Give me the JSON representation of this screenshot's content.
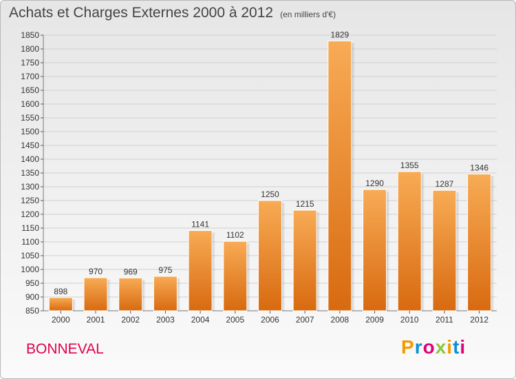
{
  "title": "Achats et Charges Externes 2000 à 2012",
  "subtitle": "(en milliers d'€)",
  "commune": "BONNEVAL",
  "logo": {
    "text": "Proxiti",
    "letters": [
      "P",
      "r",
      "o",
      "x",
      "i",
      "t",
      "i"
    ],
    "colors": [
      "#f39a00",
      "#0a8fd8",
      "#e0007a",
      "#8cc63f",
      "#f39a00",
      "#0a8fd8",
      "#e0007a"
    ]
  },
  "colors": {
    "bar_top": "#f8ab55",
    "bar_bottom": "#d86a10",
    "title": "#444444",
    "commune": "#e0004d"
  },
  "chart_data": {
    "type": "bar",
    "categories": [
      "2000",
      "2001",
      "2002",
      "2003",
      "2004",
      "2005",
      "2006",
      "2007",
      "2008",
      "2009",
      "2010",
      "2011",
      "2012"
    ],
    "values": [
      898,
      970,
      969,
      975,
      1141,
      1102,
      1250,
      1215,
      1829,
      1290,
      1355,
      1287,
      1346
    ],
    "title": "Achats et Charges Externes 2000 à 2012",
    "subtitle": "(en milliers d'€)",
    "ylim": [
      850,
      1850
    ],
    "yticks": [
      850,
      900,
      950,
      1000,
      1050,
      1100,
      1150,
      1200,
      1250,
      1300,
      1350,
      1400,
      1450,
      1500,
      1550,
      1600,
      1650,
      1700,
      1750,
      1800,
      1850
    ],
    "grid": true,
    "legend": "none"
  }
}
